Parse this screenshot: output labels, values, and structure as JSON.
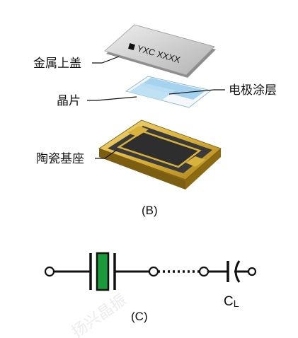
{
  "diagram_b": {
    "labels": {
      "metal_lid": "金属上盖",
      "crystal_chip": "晶片",
      "electrode_coating": "电极涂层",
      "ceramic_base": "陶瓷基座"
    },
    "lid_marking": "YXC XXXX",
    "caption": "(B)"
  },
  "diagram_c": {
    "capacitor_label_main": "C",
    "capacitor_label_sub": "L",
    "caption": "(C)"
  },
  "watermark": "扬兴晶振",
  "colors": {
    "crystal_green": "#1b9a3c",
    "electrode_blue": "#9fd0ee",
    "gold": "#d9b23c",
    "lid_gray": "#c9c9c9",
    "base_dark": "#3a3a3a"
  }
}
